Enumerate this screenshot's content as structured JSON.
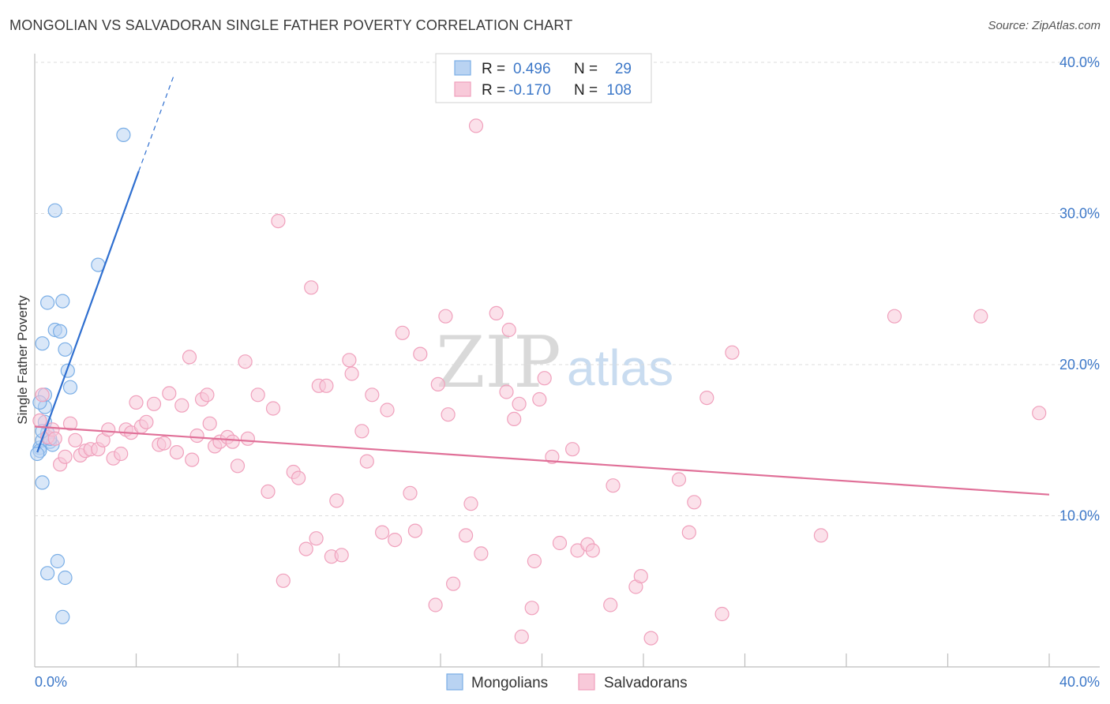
{
  "chart_data": {
    "type": "scatter",
    "title": "MONGOLIAN VS SALVADORAN SINGLE FATHER POVERTY CORRELATION CHART",
    "source": "Source: ZipAtlas.com",
    "ylabel": "Single Father Poverty",
    "xlim": [
      0,
      40
    ],
    "ylim": [
      0,
      40
    ],
    "x_tick_labels": [
      "0.0%",
      "40.0%"
    ],
    "y_ticks": [
      10,
      20,
      30,
      40
    ],
    "y_tick_labels": [
      "10.0%",
      "20.0%",
      "30.0%",
      "40.0%"
    ],
    "watermark": {
      "zip": "ZIP",
      "atlas": "atlas"
    },
    "legend": {
      "entries": [
        {
          "r_label": "R =",
          "r_value": "0.496",
          "n_label": "N =",
          "n_value": "29"
        },
        {
          "r_label": "R =",
          "r_value": "-0.170",
          "n_label": "N =",
          "n_value": "108"
        }
      ]
    },
    "series": [
      {
        "name": "Mongolians",
        "color": "#7aaee6",
        "fill": "#b9d3f2",
        "line_color": "#2f6fd0",
        "trend": {
          "x0": 0.1,
          "y0": 14.2,
          "x1": 4.1,
          "y1": 32.8,
          "dash_x1": 5.5,
          "dash_y1": 39.2
        },
        "points": [
          [
            0.2,
            14.5
          ],
          [
            0.3,
            15.0
          ],
          [
            0.2,
            14.3
          ],
          [
            0.4,
            17.2
          ],
          [
            0.4,
            18.0
          ],
          [
            0.5,
            15.5
          ],
          [
            0.6,
            14.9
          ],
          [
            0.7,
            14.7
          ],
          [
            0.3,
            12.2
          ],
          [
            0.5,
            24.1
          ],
          [
            0.8,
            22.3
          ],
          [
            1.0,
            22.2
          ],
          [
            1.1,
            24.2
          ],
          [
            1.2,
            21.0
          ],
          [
            1.3,
            19.6
          ],
          [
            1.4,
            18.5
          ],
          [
            0.3,
            21.4
          ],
          [
            0.8,
            30.2
          ],
          [
            2.5,
            26.6
          ],
          [
            3.5,
            35.2
          ],
          [
            0.5,
            6.2
          ],
          [
            0.9,
            7.0
          ],
          [
            1.2,
            5.9
          ],
          [
            1.1,
            3.3
          ],
          [
            0.1,
            14.1
          ],
          [
            0.2,
            17.5
          ],
          [
            0.4,
            16.2
          ],
          [
            0.6,
            15.1
          ],
          [
            0.3,
            15.6
          ]
        ]
      },
      {
        "name": "Salvadorans",
        "color": "#f0a0bc",
        "fill": "#f8c9d9",
        "line_color": "#e07098",
        "trend": {
          "x0": 0.0,
          "y0": 15.9,
          "x1": 40.0,
          "y1": 11.4
        },
        "points": [
          [
            0.2,
            16.3
          ],
          [
            0.3,
            18.0
          ],
          [
            0.5,
            15.2
          ],
          [
            0.7,
            15.7
          ],
          [
            0.8,
            15.1
          ],
          [
            1.0,
            13.4
          ],
          [
            1.2,
            13.9
          ],
          [
            1.4,
            16.1
          ],
          [
            1.6,
            15.0
          ],
          [
            1.8,
            14.0
          ],
          [
            2.0,
            14.3
          ],
          [
            2.2,
            14.4
          ],
          [
            2.5,
            14.4
          ],
          [
            2.7,
            15.0
          ],
          [
            2.9,
            15.7
          ],
          [
            3.1,
            13.8
          ],
          [
            3.4,
            14.1
          ],
          [
            3.6,
            15.7
          ],
          [
            3.8,
            15.5
          ],
          [
            4.0,
            17.5
          ],
          [
            4.2,
            15.9
          ],
          [
            4.4,
            16.2
          ],
          [
            4.7,
            17.4
          ],
          [
            4.9,
            14.7
          ],
          [
            5.1,
            14.8
          ],
          [
            5.3,
            18.1
          ],
          [
            5.6,
            14.2
          ],
          [
            5.8,
            17.3
          ],
          [
            6.1,
            20.5
          ],
          [
            6.2,
            13.7
          ],
          [
            6.4,
            15.3
          ],
          [
            6.6,
            17.7
          ],
          [
            6.8,
            18.0
          ],
          [
            6.9,
            16.1
          ],
          [
            7.1,
            14.6
          ],
          [
            7.3,
            14.9
          ],
          [
            7.6,
            15.2
          ],
          [
            7.8,
            14.9
          ],
          [
            8.0,
            13.3
          ],
          [
            8.3,
            20.2
          ],
          [
            8.4,
            15.1
          ],
          [
            8.8,
            18.0
          ],
          [
            9.2,
            11.6
          ],
          [
            9.4,
            17.1
          ],
          [
            9.6,
            29.5
          ],
          [
            9.8,
            5.7
          ],
          [
            10.2,
            12.9
          ],
          [
            10.4,
            12.5
          ],
          [
            10.7,
            7.8
          ],
          [
            10.9,
            25.1
          ],
          [
            11.1,
            8.5
          ],
          [
            11.2,
            18.6
          ],
          [
            11.5,
            18.6
          ],
          [
            11.7,
            7.3
          ],
          [
            11.9,
            11.0
          ],
          [
            12.1,
            7.4
          ],
          [
            12.4,
            20.3
          ],
          [
            12.5,
            19.4
          ],
          [
            12.9,
            15.6
          ],
          [
            13.1,
            13.6
          ],
          [
            13.3,
            18.0
          ],
          [
            13.7,
            8.9
          ],
          [
            13.9,
            17.0
          ],
          [
            14.2,
            8.4
          ],
          [
            14.5,
            22.1
          ],
          [
            14.8,
            11.5
          ],
          [
            15.0,
            9.0
          ],
          [
            15.2,
            20.7
          ],
          [
            15.8,
            4.1
          ],
          [
            15.9,
            18.7
          ],
          [
            16.2,
            23.2
          ],
          [
            16.3,
            16.7
          ],
          [
            16.5,
            5.5
          ],
          [
            17.0,
            8.7
          ],
          [
            17.2,
            10.8
          ],
          [
            17.4,
            35.8
          ],
          [
            17.6,
            7.5
          ],
          [
            18.2,
            23.4
          ],
          [
            18.6,
            18.2
          ],
          [
            18.7,
            22.3
          ],
          [
            18.9,
            16.4
          ],
          [
            19.1,
            17.4
          ],
          [
            19.2,
            2.0
          ],
          [
            19.6,
            3.9
          ],
          [
            19.7,
            7.0
          ],
          [
            19.9,
            17.7
          ],
          [
            20.1,
            19.1
          ],
          [
            20.4,
            13.9
          ],
          [
            20.7,
            8.2
          ],
          [
            21.2,
            14.4
          ],
          [
            21.4,
            7.7
          ],
          [
            21.8,
            8.1
          ],
          [
            22.0,
            7.7
          ],
          [
            22.7,
            4.1
          ],
          [
            22.8,
            12.0
          ],
          [
            23.7,
            5.3
          ],
          [
            23.9,
            6.0
          ],
          [
            24.3,
            1.9
          ],
          [
            25.4,
            12.4
          ],
          [
            25.8,
            8.9
          ],
          [
            26.0,
            10.9
          ],
          [
            26.5,
            17.8
          ],
          [
            27.1,
            3.5
          ],
          [
            27.5,
            20.8
          ],
          [
            31.0,
            8.7
          ],
          [
            33.9,
            23.2
          ],
          [
            37.3,
            23.2
          ],
          [
            39.6,
            16.8
          ]
        ]
      }
    ]
  }
}
